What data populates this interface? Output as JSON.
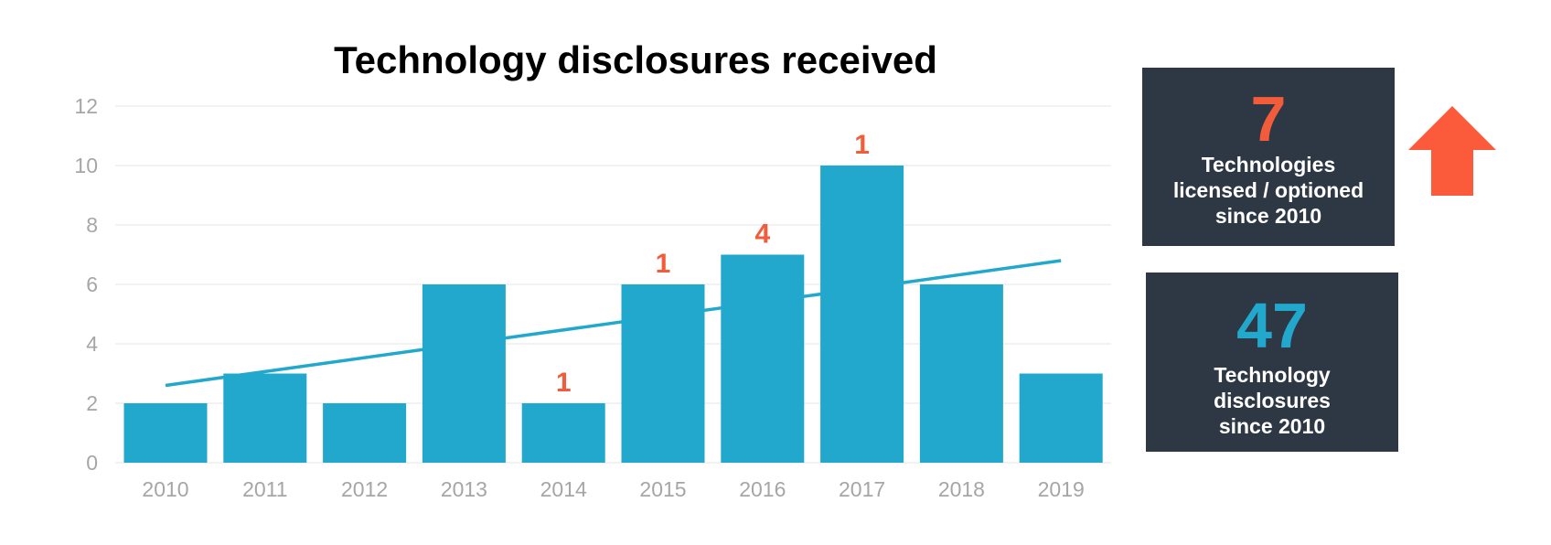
{
  "colors": {
    "bar": "#22a8cc",
    "trend": "#22a8cc",
    "annotation": "#f25c3b",
    "grid": "#e6e6e6",
    "tick": "#a6a6a6",
    "box_bg": "#2e3844",
    "arrow": "#fb5a3b",
    "stat_licensed": "#f25c3b",
    "stat_disclosures": "#22a8cc"
  },
  "chart_data": {
    "type": "bar",
    "title": "Technology disclosures received",
    "categories": [
      "2010",
      "2011",
      "2012",
      "2013",
      "2014",
      "2015",
      "2016",
      "2017",
      "2018",
      "2019"
    ],
    "values": [
      2,
      3,
      2,
      6,
      2,
      6,
      7,
      10,
      6,
      3
    ],
    "annotations": [
      null,
      null,
      null,
      null,
      "1",
      "1",
      "4",
      "1",
      null,
      null
    ],
    "trendline": {
      "start": 2.6,
      "end": 6.8
    },
    "ylim": [
      0,
      12
    ],
    "yticks": [
      0,
      2,
      4,
      6,
      8,
      10,
      12
    ],
    "xlabel": "",
    "ylabel": "",
    "grid": true
  },
  "stats": {
    "licensed": {
      "number": "7",
      "label": "Technologies\nlicensed / optioned\nsince 2010"
    },
    "disclosures": {
      "number": "47",
      "label": "Technology\ndisclosures\nsince 2010"
    }
  },
  "icons": {
    "trend_arrow": "arrow-up-icon"
  }
}
